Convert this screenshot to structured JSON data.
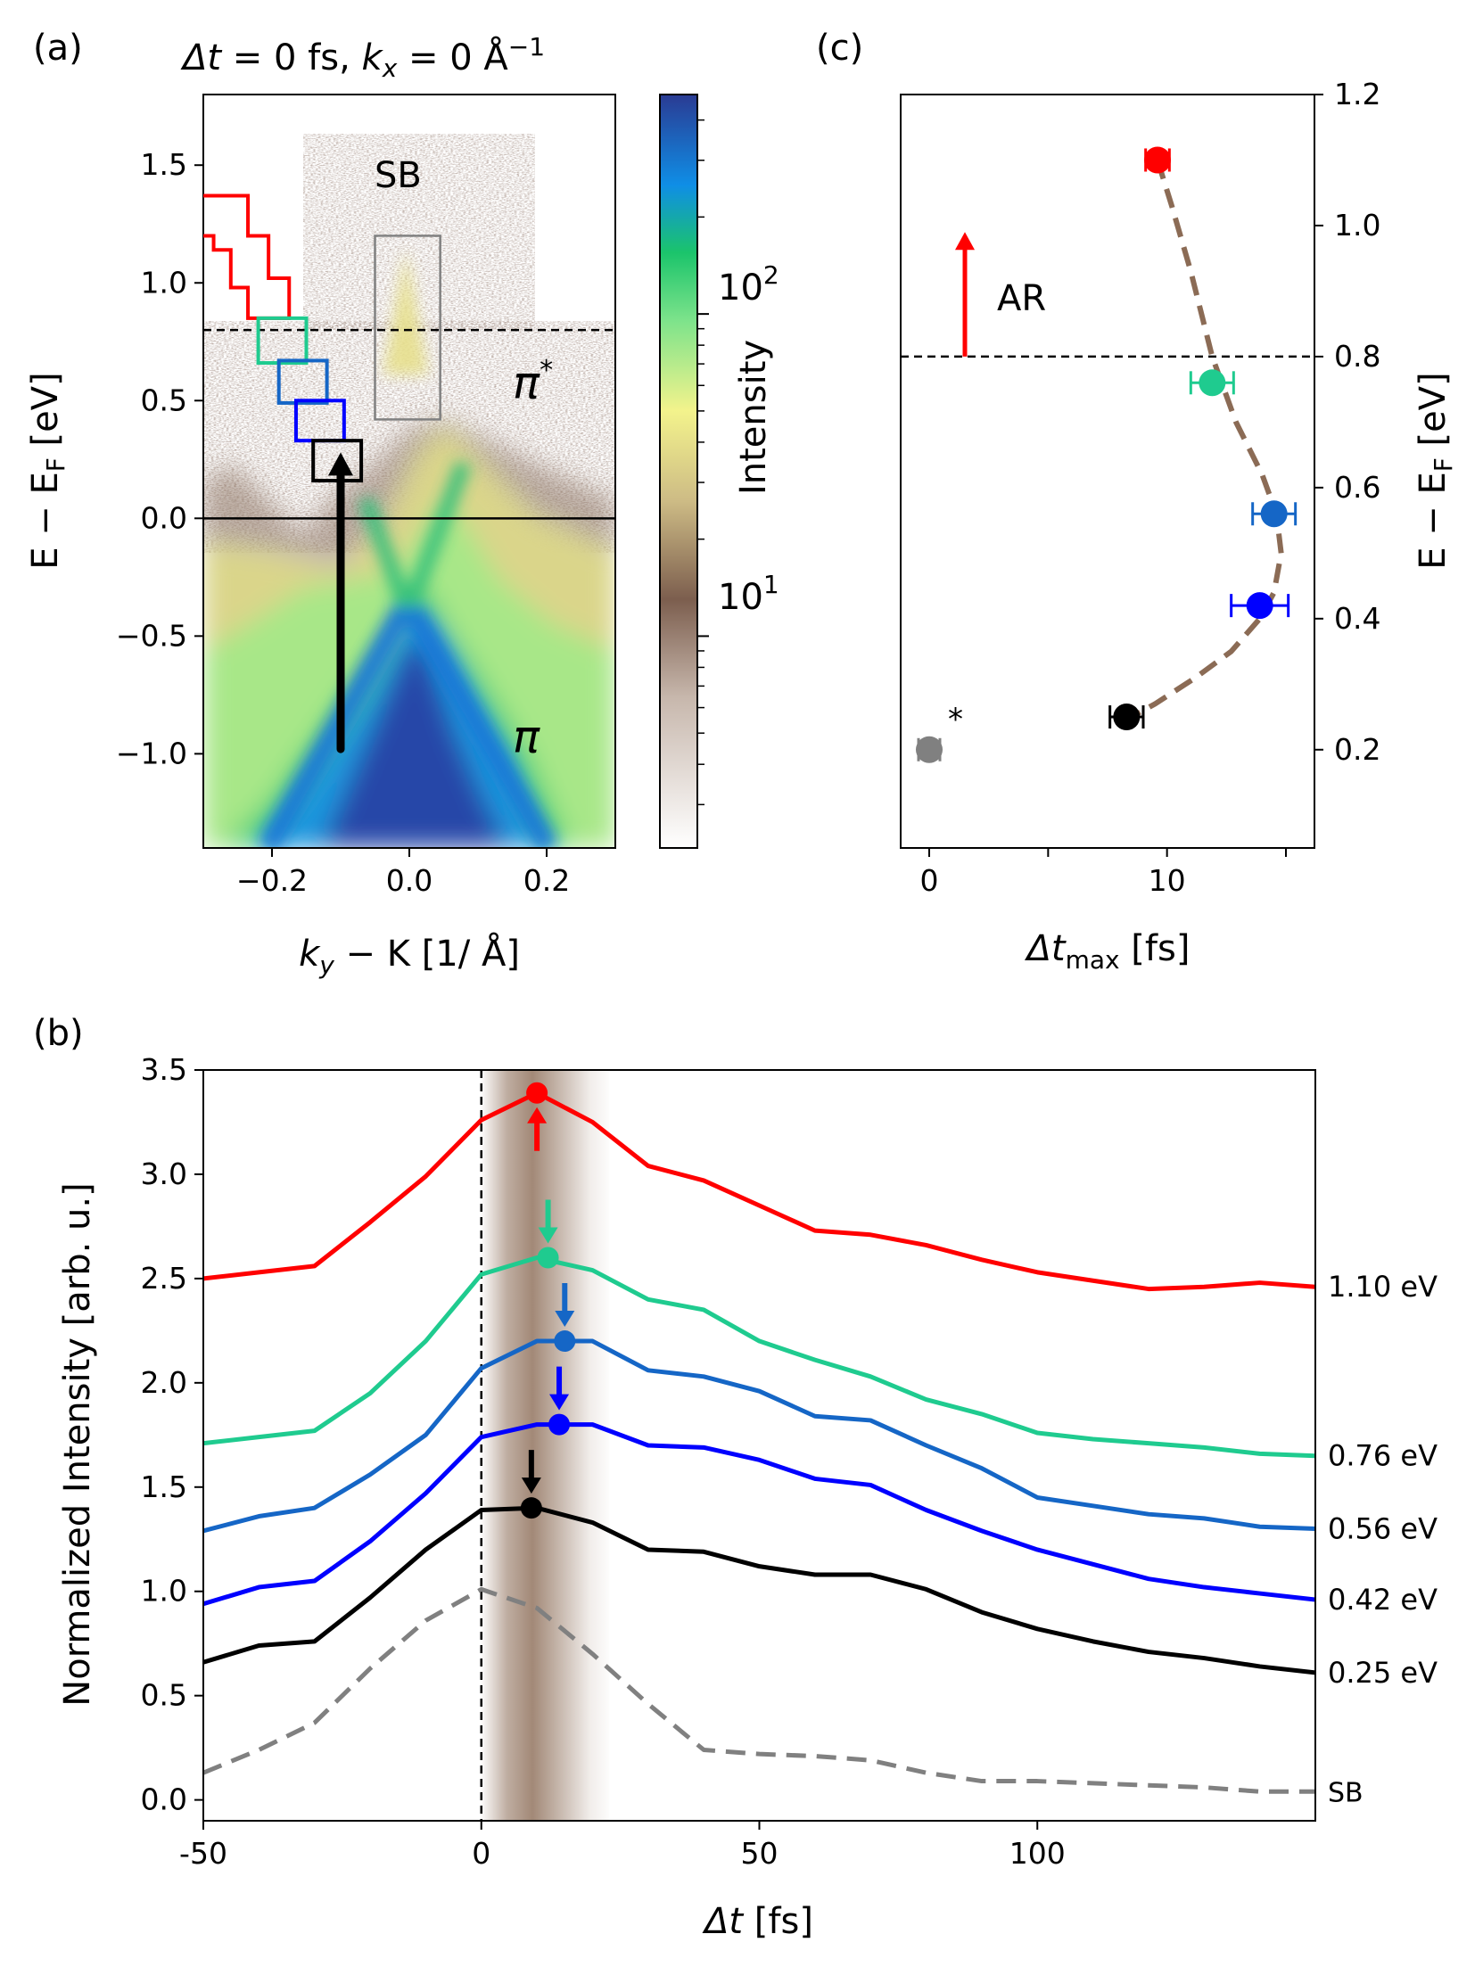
{
  "figure_title": "Δt = 0 fs, kx = 0 Å⁻¹",
  "colors": {
    "red": "#ff0000",
    "teal": "#1fcb8f",
    "mid_blue": "#1566c6",
    "blue": "#0000ff",
    "black": "#000000",
    "gray": "#808080",
    "brown": "#8b6b55"
  },
  "chart_data": [
    {
      "panel": "(a)",
      "type": "heatmap",
      "title": "Δt = 0 fs, kx = 0 Å⁻¹",
      "title_parts": {
        "dt": "Δt",
        "dt_val": " = 0 fs, ",
        "kx": "k",
        "kx_sub": "x",
        "kx_val": " = 0 Å",
        "kx_exp": "−1"
      },
      "xlabel": "ky − K [1/ Å]",
      "xlabel_parts": {
        "k": "k",
        "sub": "y",
        "rest": " − K [1/ Å]"
      },
      "ylabel": "E − EF [eV]",
      "ylabel_parts": {
        "main": "E − E",
        "sub": "F",
        "unit": " [eV]"
      },
      "xlim": [
        -0.3,
        0.3
      ],
      "ylim": [
        -1.4,
        1.8
      ],
      "xticks": [
        -0.2,
        0.0,
        0.2
      ],
      "xtick_labels": [
        "−0.2",
        "0.0",
        "0.2"
      ],
      "yticks": [
        -1.0,
        -0.5,
        0.0,
        0.5,
        1.0,
        1.5
      ],
      "ytick_labels": [
        "−1.0",
        "−0.5",
        "0.0",
        "0.5",
        "1.0",
        "1.5"
      ],
      "annotations": {
        "sb": "SB",
        "pi_star": "π",
        "pi_star_sup": "*",
        "pi": "π"
      },
      "hline_dashed": 0.8,
      "hline_solid": 0.0,
      "arrow": {
        "k": -0.1,
        "from": -0.98,
        "to": 0.28
      },
      "boxes": [
        {
          "name": "1.10 eV region",
          "color": "#ff0000",
          "kind": "staircase"
        },
        {
          "name": "0.76 eV",
          "color": "#1fcb8f",
          "x": [
            -0.22,
            -0.15
          ],
          "y": [
            0.66,
            0.85
          ]
        },
        {
          "name": "0.56 eV",
          "color": "#1566c6",
          "x": [
            -0.19,
            -0.12
          ],
          "y": [
            0.49,
            0.67
          ]
        },
        {
          "name": "0.42 eV",
          "color": "#0000ff",
          "x": [
            -0.165,
            -0.095
          ],
          "y": [
            0.33,
            0.5
          ]
        },
        {
          "name": "0.25 eV",
          "color": "#000000",
          "x": [
            -0.14,
            -0.07
          ],
          "y": [
            0.16,
            0.33
          ]
        },
        {
          "name": "SB",
          "color": "#808080",
          "x": [
            -0.05,
            0.045
          ],
          "y": [
            0.42,
            1.2
          ]
        }
      ],
      "colorbar": {
        "label": "Intensity",
        "scale": "log",
        "tick_labels": [
          "10",
          "10"
        ],
        "tick_exps": [
          "2",
          "1"
        ]
      }
    },
    {
      "panel": "(c)",
      "type": "scatter",
      "xlabel_parts": {
        "dt": "Δt",
        "sub": "max",
        "unit": " [fs]"
      },
      "ylabel_parts": {
        "main": "E − E",
        "sub": "F",
        "unit": " [eV]"
      },
      "xlim": [
        -1.2,
        16.2
      ],
      "ylim": [
        0.05,
        1.2
      ],
      "xticks": [
        0,
        10
      ],
      "xtick_labels": [
        "0",
        "10"
      ],
      "yticks": [
        0.2,
        0.4,
        0.6,
        0.8,
        1.0,
        1.2
      ],
      "ytick_labels": [
        "0.2",
        "0.4",
        "0.6",
        "0.8",
        "1.0",
        "1.2"
      ],
      "points": [
        {
          "x": 9.6,
          "y": 1.1,
          "xerr": 0.5,
          "color": "#ff0000"
        },
        {
          "x": 11.9,
          "y": 0.76,
          "xerr": 0.9,
          "color": "#1fcb8f"
        },
        {
          "x": 14.5,
          "y": 0.56,
          "xerr": 0.9,
          "color": "#1566c6"
        },
        {
          "x": 13.9,
          "y": 0.42,
          "xerr": 1.2,
          "color": "#0000ff"
        },
        {
          "x": 8.3,
          "y": 0.25,
          "xerr": 0.7,
          "color": "#000000"
        },
        {
          "x": 0.0,
          "y": 0.2,
          "xerr": 0.45,
          "color": "#808080"
        }
      ],
      "fit_curve": [
        [
          9.6,
          1.1
        ],
        [
          10.2,
          1.03
        ],
        [
          11.0,
          0.93
        ],
        [
          11.9,
          0.8
        ],
        [
          12.9,
          0.7
        ],
        [
          14.0,
          0.62
        ],
        [
          14.6,
          0.56
        ],
        [
          14.8,
          0.5
        ],
        [
          14.5,
          0.44
        ],
        [
          13.9,
          0.4
        ],
        [
          12.7,
          0.35
        ],
        [
          11.2,
          0.31
        ],
        [
          9.5,
          0.27
        ],
        [
          8.5,
          0.25
        ]
      ],
      "hline_dashed": 0.8,
      "arrow_label": "AR",
      "arrow": {
        "x": 1.5,
        "from": 0.8,
        "to": 0.99
      },
      "gray_star": "*"
    },
    {
      "panel": "(b)",
      "type": "line",
      "xlabel_parts": {
        "dt": "Δt",
        "unit": " [fs]"
      },
      "ylabel": "Normalized Intensity [arb. u.]",
      "xlim": [
        -50,
        150
      ],
      "ylim": [
        -0.1,
        3.5
      ],
      "xticks": [
        -50,
        0,
        50,
        100
      ],
      "xtick_labels": [
        "-50",
        "0",
        "50",
        "100"
      ],
      "yticks": [
        0.0,
        0.5,
        1.0,
        1.5,
        2.0,
        2.5,
        3.0,
        3.5
      ],
      "ytick_labels": [
        "0.0",
        "0.5",
        "1.0",
        "1.5",
        "2.0",
        "2.5",
        "3.0",
        "3.5"
      ],
      "pump_band": [
        0,
        23
      ],
      "x": [
        -50,
        -40,
        -30,
        -20,
        -10,
        0,
        10,
        20,
        30,
        40,
        50,
        60,
        70,
        80,
        90,
        100,
        110,
        120,
        130,
        140,
        150
      ],
      "series": [
        {
          "name": "1.10 eV",
          "label": "1.10 eV",
          "color": "#ff0000",
          "dashed": false,
          "width": 5,
          "values": [
            2.5,
            2.53,
            2.56,
            2.77,
            2.99,
            3.26,
            3.39,
            3.25,
            3.04,
            2.97,
            2.85,
            2.73,
            2.71,
            2.66,
            2.59,
            2.53,
            2.49,
            2.45,
            2.46,
            2.48,
            2.46
          ],
          "marker": {
            "x": 10,
            "y": 3.39,
            "arrow": "up"
          }
        },
        {
          "name": "0.76 eV",
          "label": "0.76 eV",
          "color": "#1fcb8f",
          "dashed": false,
          "width": 5,
          "values": [
            1.71,
            1.74,
            1.77,
            1.95,
            2.2,
            2.52,
            2.6,
            2.54,
            2.4,
            2.35,
            2.2,
            2.11,
            2.03,
            1.92,
            1.85,
            1.76,
            1.73,
            1.71,
            1.69,
            1.66,
            1.65
          ],
          "marker": {
            "x": 12,
            "y": 2.6,
            "arrow": "down"
          }
        },
        {
          "name": "0.56 eV",
          "label": "0.56 eV",
          "color": "#1566c6",
          "dashed": false,
          "width": 5,
          "values": [
            1.29,
            1.36,
            1.4,
            1.56,
            1.75,
            2.07,
            2.2,
            2.2,
            2.06,
            2.03,
            1.96,
            1.84,
            1.82,
            1.7,
            1.59,
            1.45,
            1.41,
            1.37,
            1.35,
            1.31,
            1.3
          ],
          "marker": {
            "x": 15,
            "y": 2.2,
            "arrow": "down"
          }
        },
        {
          "name": "0.42 eV",
          "label": "0.42 eV",
          "color": "#0000ff",
          "dashed": false,
          "width": 5,
          "values": [
            0.94,
            1.02,
            1.05,
            1.24,
            1.47,
            1.74,
            1.8,
            1.8,
            1.7,
            1.69,
            1.63,
            1.54,
            1.51,
            1.39,
            1.29,
            1.2,
            1.13,
            1.06,
            1.02,
            0.99,
            0.96
          ],
          "marker": {
            "x": 14,
            "y": 1.8,
            "arrow": "down"
          }
        },
        {
          "name": "0.25 eV",
          "label": "0.25 eV",
          "color": "#000000",
          "dashed": false,
          "width": 5,
          "values": [
            0.66,
            0.74,
            0.76,
            0.97,
            1.2,
            1.39,
            1.4,
            1.33,
            1.2,
            1.19,
            1.12,
            1.08,
            1.08,
            1.01,
            0.9,
            0.82,
            0.76,
            0.71,
            0.68,
            0.64,
            0.61
          ],
          "marker": {
            "x": 9,
            "y": 1.4,
            "arrow": "down"
          }
        },
        {
          "name": "SB",
          "label": "SB",
          "color": "#808080",
          "dashed": true,
          "width": 5,
          "values": [
            0.13,
            0.24,
            0.37,
            0.63,
            0.86,
            1.01,
            0.92,
            0.7,
            0.46,
            0.24,
            0.22,
            0.21,
            0.19,
            0.13,
            0.09,
            0.09,
            0.08,
            0.07,
            0.06,
            0.04,
            0.04
          ]
        }
      ]
    }
  ],
  "panel_labels": {
    "a": "(a)",
    "b": "(b)",
    "c": "(c)"
  }
}
